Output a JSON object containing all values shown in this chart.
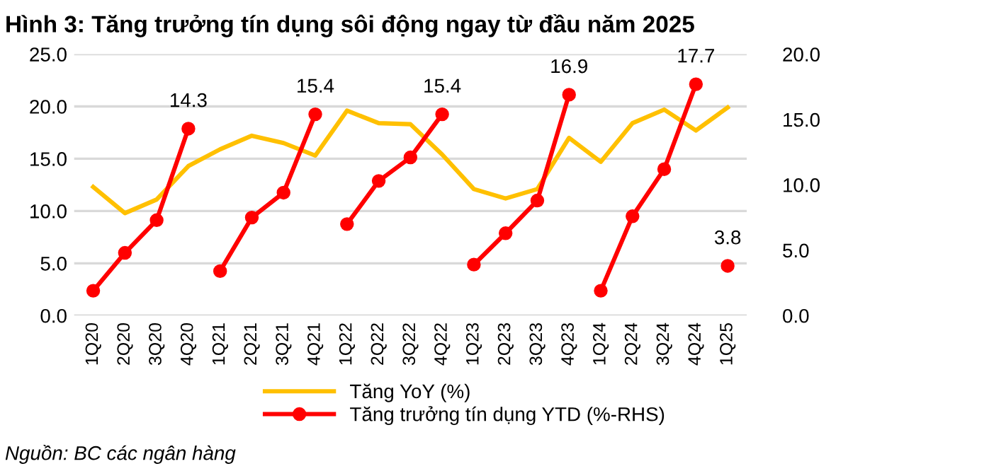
{
  "chart_data": {
    "type": "line",
    "title": "Hình 3: Tăng trưởng tín dụng sôi động ngay từ đầu năm 2025",
    "categories": [
      "1Q20",
      "2Q20",
      "3Q20",
      "4Q20",
      "1Q21",
      "2Q21",
      "3Q21",
      "4Q21",
      "1Q22",
      "2Q22",
      "3Q22",
      "4Q22",
      "1Q23",
      "2Q23",
      "3Q23",
      "4Q23",
      "1Q24",
      "2Q24",
      "3Q24",
      "4Q24",
      "1Q25"
    ],
    "series": [
      {
        "name": "Tăng YoY (%)",
        "color": "#ffc000",
        "marker": "none",
        "values": [
          12.3,
          9.8,
          11.1,
          14.3,
          15.9,
          17.2,
          16.5,
          15.3,
          19.6,
          18.4,
          18.3,
          15.4,
          12.1,
          11.2,
          12.1,
          17.0,
          14.7,
          18.4,
          19.7,
          17.7,
          19.9
        ]
      },
      {
        "name": "Tăng trưởng tín dụng YTD (%-RHS)",
        "color": "#ff0000",
        "axis": "y2",
        "marker": "circle",
        "values": [
          1.9,
          4.8,
          7.3,
          14.3,
          null,
          null,
          null,
          null,
          null,
          null,
          null,
          null,
          null,
          null,
          null,
          null,
          null,
          null,
          null,
          null,
          null
        ],
        "value_labels": [
          null,
          null,
          null,
          "14.3",
          null,
          null,
          null,
          null,
          null,
          null,
          null,
          null,
          null,
          null,
          null,
          null,
          null,
          null,
          null,
          null,
          null
        ]
      },
      {
        "color": "#ff0000",
        "axis": "y2",
        "marker": "circle",
        "values": [
          null,
          null,
          null,
          null,
          3.4,
          7.5,
          9.4,
          15.4,
          null,
          null,
          null,
          null,
          null,
          null,
          null,
          null,
          null,
          null,
          null,
          null,
          null
        ],
        "value_labels": [
          null,
          null,
          null,
          null,
          null,
          null,
          null,
          "15.4",
          null,
          null,
          null,
          null,
          null,
          null,
          null,
          null,
          null,
          null,
          null,
          null,
          null
        ]
      },
      {
        "color": "#ff0000",
        "axis": "y2",
        "marker": "circle",
        "values": [
          null,
          null,
          null,
          null,
          null,
          null,
          null,
          null,
          7.0,
          10.3,
          12.1,
          15.4,
          null,
          null,
          null,
          null,
          null,
          null,
          null,
          null,
          null
        ],
        "value_labels": [
          null,
          null,
          null,
          null,
          null,
          null,
          null,
          null,
          null,
          null,
          null,
          "15.4",
          null,
          null,
          null,
          null,
          null,
          null,
          null,
          null,
          null
        ]
      },
      {
        "color": "#ff0000",
        "axis": "y2",
        "marker": "circle",
        "values": [
          null,
          null,
          null,
          null,
          null,
          null,
          null,
          null,
          null,
          null,
          null,
          null,
          3.9,
          6.3,
          8.8,
          16.9,
          null,
          null,
          null,
          null,
          null
        ],
        "value_labels": [
          null,
          null,
          null,
          null,
          null,
          null,
          null,
          null,
          null,
          null,
          null,
          null,
          null,
          null,
          null,
          "16.9",
          null,
          null,
          null,
          null,
          null
        ]
      },
      {
        "color": "#ff0000",
        "axis": "y2",
        "marker": "circle",
        "values": [
          null,
          null,
          null,
          null,
          null,
          null,
          null,
          null,
          null,
          null,
          null,
          null,
          null,
          null,
          null,
          null,
          1.9,
          7.6,
          11.2,
          17.7,
          null
        ],
        "value_labels": [
          null,
          null,
          null,
          null,
          null,
          null,
          null,
          null,
          null,
          null,
          null,
          null,
          null,
          null,
          null,
          null,
          null,
          null,
          null,
          "17.7",
          null
        ]
      },
      {
        "color": "#ff0000",
        "axis": "y2",
        "marker": "circle",
        "values": [
          null,
          null,
          null,
          null,
          null,
          null,
          null,
          null,
          null,
          null,
          null,
          null,
          null,
          null,
          null,
          null,
          null,
          null,
          null,
          null,
          3.8
        ],
        "value_labels": [
          null,
          null,
          null,
          null,
          null,
          null,
          null,
          null,
          null,
          null,
          null,
          null,
          null,
          null,
          null,
          null,
          null,
          null,
          null,
          null,
          "3.8"
        ]
      }
    ],
    "ylim": [
      0,
      25
    ],
    "yticks": [
      {
        "value": 0,
        "label": "0.0"
      },
      {
        "value": 5,
        "label": "5.0"
      },
      {
        "value": 10,
        "label": "10.0"
      },
      {
        "value": 15,
        "label": "15.0"
      },
      {
        "value": 20,
        "label": "20.0"
      },
      {
        "value": 25,
        "label": "25.0"
      }
    ],
    "y2lim": [
      0,
      20
    ],
    "y2ticks": [
      {
        "value": 0,
        "label": "0.0"
      },
      {
        "value": 5,
        "label": "5.0"
      },
      {
        "value": 10,
        "label": "10.0"
      },
      {
        "value": 15,
        "label": "15.0"
      },
      {
        "value": 20,
        "label": "20.0"
      }
    ],
    "grid": "y",
    "legend": "bottom",
    "annotations": [
      "Nguồn: BC các ngân hàng"
    ]
  }
}
